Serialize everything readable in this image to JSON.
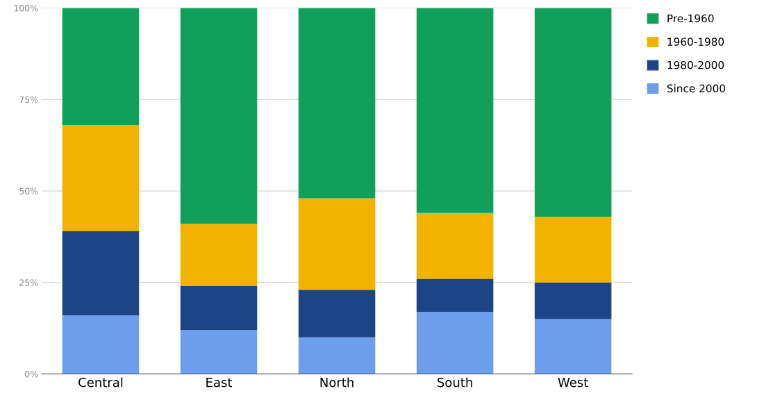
{
  "chart_data": {
    "type": "bar",
    "stacked": true,
    "categories": [
      "Central",
      "East",
      "North",
      "South",
      "West"
    ],
    "series": [
      {
        "name": "Since 2000",
        "color": "#6d9eeb",
        "values": [
          16,
          12,
          10,
          17,
          15
        ]
      },
      {
        "name": "1980-2000",
        "color": "#1c4587",
        "values": [
          23,
          12,
          13,
          9,
          10
        ]
      },
      {
        "name": "1960-1980",
        "color": "#f1b300",
        "values": [
          29,
          17,
          25,
          18,
          18
        ]
      },
      {
        "name": "Pre-1960",
        "color": "#11a05a",
        "values": [
          32,
          59,
          52,
          56,
          57
        ]
      }
    ],
    "ylim": [
      0,
      100
    ],
    "yticks": [
      {
        "value": 0,
        "label": "0%"
      },
      {
        "value": 25,
        "label": "25%"
      },
      {
        "value": 50,
        "label": "50%"
      },
      {
        "value": 75,
        "label": "75%"
      },
      {
        "value": 100,
        "label": "100%"
      }
    ],
    "grid": "y",
    "legend": "top right"
  }
}
